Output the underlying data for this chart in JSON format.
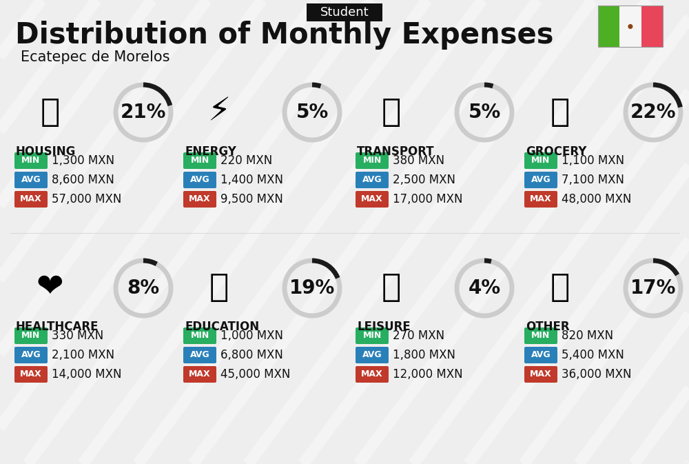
{
  "title": "Distribution of Monthly Expenses",
  "subtitle": "Ecatepec de Morelos",
  "badge": "Student",
  "bg_color": "#eeeeee",
  "categories": [
    {
      "name": "HOUSING",
      "pct": 21,
      "min": "1,300 MXN",
      "avg": "8,600 MXN",
      "max": "57,000 MXN",
      "row": 0,
      "col": 0
    },
    {
      "name": "ENERGY",
      "pct": 5,
      "min": "220 MXN",
      "avg": "1,400 MXN",
      "max": "9,500 MXN",
      "row": 0,
      "col": 1
    },
    {
      "name": "TRANSPORT",
      "pct": 5,
      "min": "380 MXN",
      "avg": "2,500 MXN",
      "max": "17,000 MXN",
      "row": 0,
      "col": 2
    },
    {
      "name": "GROCERY",
      "pct": 22,
      "min": "1,100 MXN",
      "avg": "7,100 MXN",
      "max": "48,000 MXN",
      "row": 0,
      "col": 3
    },
    {
      "name": "HEALTHCARE",
      "pct": 8,
      "min": "330 MXN",
      "avg": "2,100 MXN",
      "max": "14,000 MXN",
      "row": 1,
      "col": 0
    },
    {
      "name": "EDUCATION",
      "pct": 19,
      "min": "1,000 MXN",
      "avg": "6,800 MXN",
      "max": "45,000 MXN",
      "row": 1,
      "col": 1
    },
    {
      "name": "LEISURE",
      "pct": 4,
      "min": "270 MXN",
      "avg": "1,800 MXN",
      "max": "12,000 MXN",
      "row": 1,
      "col": 2
    },
    {
      "name": "OTHER",
      "pct": 17,
      "min": "820 MXN",
      "avg": "5,400 MXN",
      "max": "36,000 MXN",
      "row": 1,
      "col": 3
    }
  ],
  "color_min": "#27ae60",
  "color_avg": "#2980b9",
  "color_max": "#c0392b",
  "arc_dark": "#1a1a1a",
  "arc_light": "#cccccc",
  "flag_green": "#4caf24",
  "flag_red": "#e8445a",
  "stripe_color": "#ffffff",
  "title_fontsize": 30,
  "subtitle_fontsize": 15,
  "badge_fontsize": 13,
  "cat_name_fontsize": 12,
  "pct_fontsize": 20,
  "val_fontsize": 12,
  "label_fontsize": 9,
  "icon_fontsize": 34
}
